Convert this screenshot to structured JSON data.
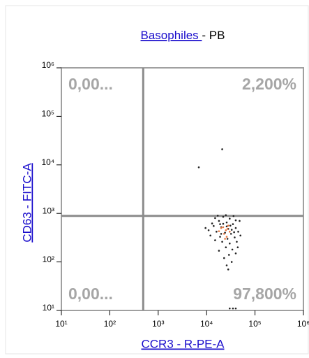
{
  "chart_data": {
    "type": "scatter",
    "title_link": "Basophiles ",
    "title": "- PB",
    "x_label": "CCR3 - R-PE-A",
    "y_label": "CD63 - FITC-A",
    "log_x": true,
    "log_y": true,
    "xlim": [
      10,
      1000000
    ],
    "ylim": [
      10,
      1000000
    ],
    "xticks": [
      {
        "value": 10,
        "label": "10¹"
      },
      {
        "value": 100,
        "label": "10²"
      },
      {
        "value": 1000,
        "label": "10³"
      },
      {
        "value": 10000,
        "label": "10⁴"
      },
      {
        "value": 100000,
        "label": "10⁵"
      },
      {
        "value": 1000000,
        "label": "10⁶"
      }
    ],
    "yticks": [
      {
        "value": 10,
        "label": "10¹"
      },
      {
        "value": 100,
        "label": "10²"
      },
      {
        "value": 1000,
        "label": "10³"
      },
      {
        "value": 10000,
        "label": "10⁴"
      },
      {
        "value": 100000,
        "label": "10⁵"
      },
      {
        "value": 1000000,
        "label": "10⁶"
      }
    ],
    "gate_x": 490,
    "gate_y": 890,
    "quadrant_labels": [
      "0,00...",
      "2,200%",
      "0,00...",
      "97,800%"
    ],
    "series": [
      {
        "color": "#222222",
        "x": [
          15000,
          22000,
          30000,
          18000,
          26000,
          35000,
          14000,
          20000,
          28000,
          40000,
          16000,
          24000,
          32000,
          45000,
          12000,
          19000,
          27000,
          38000,
          21000,
          30000,
          25000,
          34000,
          18000,
          29000,
          40000,
          23000,
          33000,
          26000,
          42000,
          50000,
          11000,
          13000,
          17000,
          25000,
          36000,
          9500,
          48000,
          31000,
          22000,
          37000,
          15000,
          44000,
          28000,
          20000,
          33000,
          26000,
          19000,
          40000,
          21000,
          6900,
          30000,
          40000,
          35000
        ],
        "values": [
          800,
          850,
          780,
          700,
          650,
          600,
          550,
          520,
          480,
          500,
          420,
          400,
          380,
          420,
          350,
          330,
          300,
          320,
          260,
          240,
          200,
          180,
          170,
          140,
          150,
          120,
          100,
          85,
          260,
          350,
          450,
          620,
          900,
          920,
          880,
          500,
          700,
          560,
          610,
          410,
          280,
          200,
          70,
          380,
          460,
          540,
          600,
          720,
          21000,
          8900,
          11,
          11,
          11
        ]
      },
      {
        "color": "#e8743b",
        "x": [
          20000,
          25000,
          23000,
          28000,
          18000,
          26000,
          30000,
          22000,
          24000,
          27000
        ],
        "values": [
          500,
          450,
          380,
          560,
          430,
          330,
          420,
          520,
          300,
          480
        ]
      }
    ]
  }
}
